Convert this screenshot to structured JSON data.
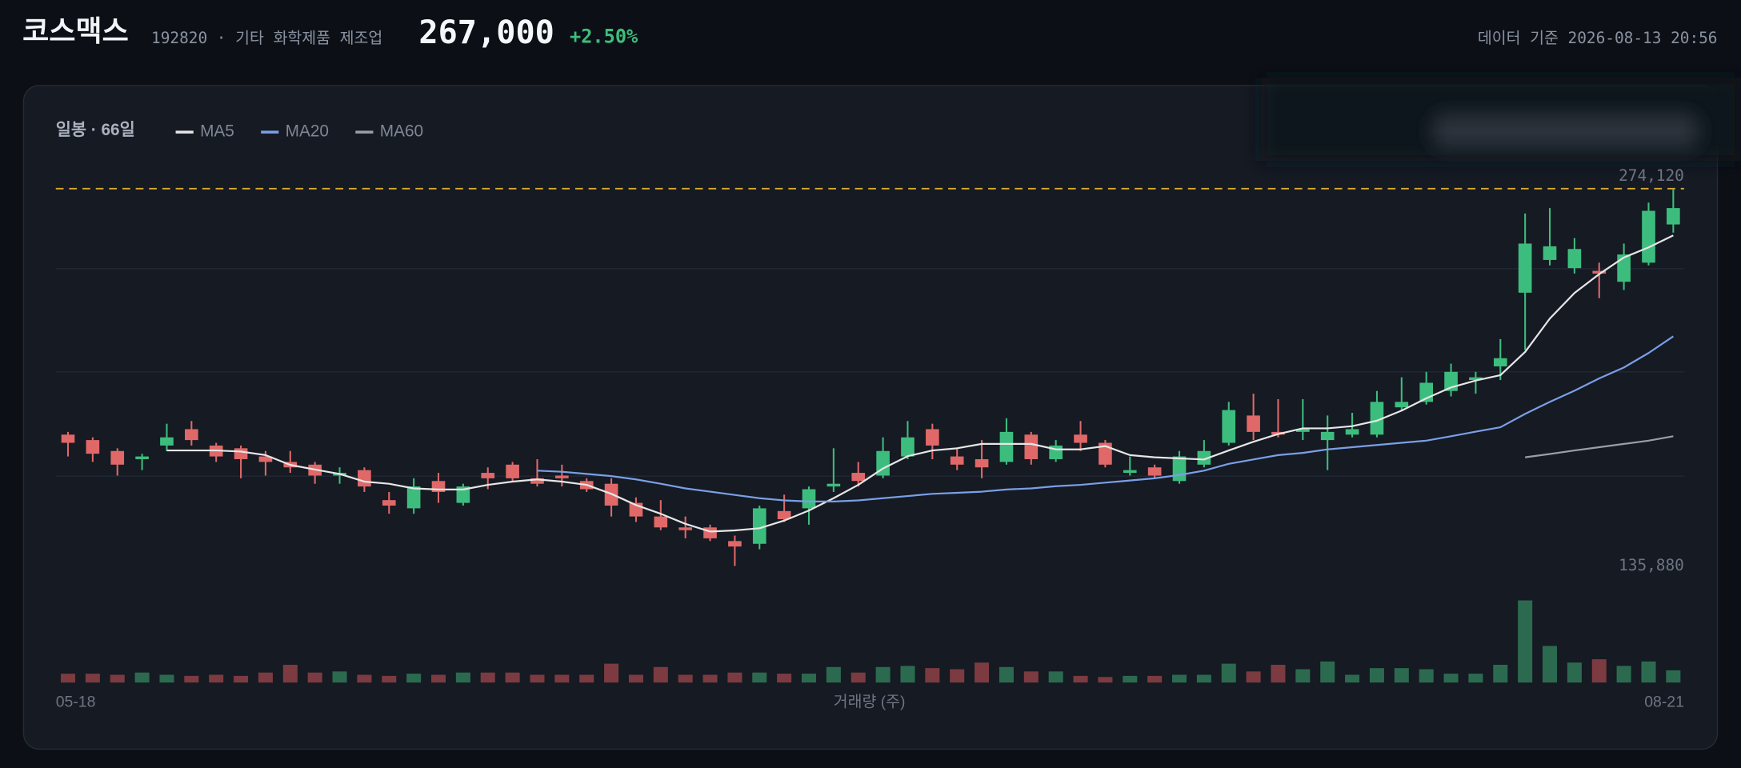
{
  "header": {
    "name": "코스맥스",
    "subtitle": "192820 · 기타 화학제품 제조업",
    "price": "267,000",
    "change": "+2.50%",
    "timestamp": "데이터 기준 2026-08-13 20:56"
  },
  "chart_data": {
    "type": "candlestick",
    "title": "일봉 · 66일",
    "categories": [
      "05-18",
      null,
      null,
      null,
      null,
      null,
      null,
      null,
      null,
      null,
      null,
      null,
      null,
      null,
      null,
      null,
      null,
      null,
      null,
      null,
      null,
      null,
      null,
      null,
      null,
      null,
      null,
      null,
      null,
      null,
      null,
      null,
      null,
      null,
      null,
      null,
      null,
      null,
      null,
      null,
      null,
      null,
      null,
      null,
      null,
      null,
      null,
      null,
      null,
      null,
      null,
      null,
      null,
      null,
      null,
      null,
      null,
      null,
      null,
      null,
      null,
      null,
      null,
      null,
      null,
      "08-21"
    ],
    "open": [
      184000,
      182000,
      178000,
      175000,
      180000,
      186000,
      180000,
      179000,
      176000,
      174000,
      173000,
      169000,
      171000,
      160000,
      157000,
      167000,
      159000,
      170000,
      173000,
      168000,
      169000,
      167000,
      166000,
      159000,
      154000,
      150000,
      150000,
      145000,
      144000,
      156000,
      157000,
      165000,
      170000,
      169000,
      176000,
      186000,
      176000,
      175000,
      174000,
      184000,
      175000,
      184000,
      181000,
      170000,
      172000,
      167000,
      173000,
      181000,
      191000,
      185000,
      185000,
      182000,
      184000,
      184000,
      194000,
      196000,
      200000,
      204000,
      209000,
      236000,
      248000,
      245000,
      244000,
      240000,
      247000,
      261000
    ],
    "high": [
      185000,
      183000,
      179000,
      177000,
      188000,
      189000,
      181000,
      180000,
      178000,
      178000,
      174000,
      172000,
      172000,
      163000,
      168000,
      170000,
      166000,
      172000,
      174000,
      175000,
      173000,
      168000,
      168000,
      161000,
      160000,
      154000,
      151000,
      147000,
      158000,
      162000,
      165000,
      179000,
      174000,
      183000,
      189000,
      188000,
      179000,
      182000,
      190000,
      185000,
      182000,
      189000,
      182000,
      176000,
      173000,
      178000,
      182000,
      196000,
      199000,
      197000,
      197000,
      191000,
      192000,
      200000,
      205000,
      207000,
      210000,
      207000,
      219000,
      265000,
      267000,
      256000,
      247000,
      254000,
      269000,
      274120
    ],
    "low": [
      176000,
      174000,
      169000,
      171000,
      178000,
      180000,
      174000,
      168000,
      169000,
      170000,
      166000,
      166000,
      163000,
      155000,
      155000,
      159000,
      158000,
      164000,
      167000,
      165000,
      165000,
      163000,
      154000,
      152000,
      149000,
      146000,
      145000,
      135880,
      142000,
      152000,
      151000,
      163000,
      165000,
      168000,
      175000,
      175000,
      171000,
      168000,
      173000,
      173000,
      174000,
      178000,
      172000,
      169000,
      168000,
      166000,
      172000,
      180000,
      182000,
      183000,
      182000,
      171000,
      183000,
      183000,
      193000,
      195000,
      198000,
      199000,
      204000,
      215000,
      246000,
      243000,
      234000,
      237000,
      246000,
      258000
    ],
    "close": [
      181000,
      177000,
      173000,
      176000,
      183000,
      182000,
      176000,
      175000,
      174000,
      172000,
      169000,
      170000,
      165000,
      158000,
      165000,
      163000,
      165000,
      168000,
      168000,
      166000,
      168000,
      164000,
      158000,
      154000,
      150000,
      149000,
      146000,
      143000,
      157000,
      153000,
      164000,
      166000,
      167000,
      178000,
      183000,
      180000,
      173000,
      172000,
      185000,
      175000,
      180000,
      181000,
      173000,
      171000,
      169000,
      176000,
      178000,
      193000,
      185000,
      184000,
      186000,
      185000,
      186000,
      196000,
      196000,
      203000,
      207000,
      205000,
      212000,
      254000,
      253000,
      252000,
      243000,
      250000,
      266000,
      267000
    ],
    "volume": [
      80000,
      80000,
      70000,
      90000,
      70000,
      60000,
      70000,
      60000,
      90000,
      160000,
      90000,
      100000,
      70000,
      60000,
      80000,
      70000,
      90000,
      90000,
      90000,
      70000,
      70000,
      70000,
      170000,
      70000,
      140000,
      70000,
      70000,
      90000,
      90000,
      80000,
      80000,
      140000,
      90000,
      140000,
      150000,
      130000,
      120000,
      180000,
      140000,
      100000,
      100000,
      60000,
      50000,
      60000,
      60000,
      70000,
      70000,
      170000,
      100000,
      160000,
      120000,
      190000,
      70000,
      130000,
      130000,
      120000,
      80000,
      80000,
      160000,
      740000,
      330000,
      180000,
      210000,
      150000,
      190000,
      110000
    ],
    "volume_label": "거래량 (주)",
    "up_color": "#3dbd7d",
    "down_color": "#e06868",
    "volume_up_color": "#2c6a4f",
    "volume_down_color": "#7c3b40",
    "ylim": [
      132000,
      282000
    ],
    "yticks": [
      168800,
      207000,
      244800
    ],
    "grid": true,
    "vlim": [
      0,
      800000
    ],
    "price_high": {
      "value": 274120,
      "label": "274,120"
    },
    "price_low": {
      "value": 135880,
      "label": "135,880"
    },
    "high_line_color": "#d9a92e",
    "series": [
      {
        "name": "MA5",
        "color": "#e6e6e6",
        "values": [
          null,
          null,
          null,
          null,
          178200,
          178200,
          178200,
          177800,
          176500,
          172900,
          171200,
          169600,
          166800,
          166000,
          164300,
          163900,
          163900,
          165600,
          166800,
          167600,
          166800,
          165600,
          162300,
          158200,
          155000,
          151300,
          148500,
          148900,
          149700,
          152500,
          156200,
          160700,
          165600,
          171600,
          176100,
          178200,
          179000,
          180600,
          180600,
          180600,
          178600,
          178600,
          179800,
          176500,
          175700,
          175300,
          174900,
          178200,
          181400,
          184200,
          186300,
          186300,
          187100,
          189100,
          192800,
          197300,
          201300,
          203800,
          205800,
          214300,
          226500,
          235900,
          242800,
          248900,
          252600,
          257000
        ]
      },
      {
        "name": "MA20",
        "color": "#7b9fe6",
        "values": [
          null,
          null,
          null,
          null,
          null,
          null,
          null,
          null,
          null,
          null,
          null,
          null,
          null,
          null,
          null,
          null,
          null,
          null,
          null,
          170800,
          170400,
          169600,
          168800,
          167600,
          166000,
          164300,
          163100,
          161900,
          160700,
          159900,
          159500,
          159500,
          159900,
          160700,
          161500,
          162300,
          162700,
          163100,
          163900,
          164300,
          165100,
          165600,
          166400,
          167200,
          168000,
          169200,
          170800,
          173300,
          174900,
          176500,
          177300,
          178600,
          179400,
          180200,
          181000,
          181800,
          183400,
          185100,
          186700,
          191600,
          196000,
          200100,
          204600,
          208600,
          213900,
          220000
        ]
      },
      {
        "name": "MA60",
        "color": "#9a9ea6",
        "values": [
          null,
          null,
          null,
          null,
          null,
          null,
          null,
          null,
          null,
          null,
          null,
          null,
          null,
          null,
          null,
          null,
          null,
          null,
          null,
          null,
          null,
          null,
          null,
          null,
          null,
          null,
          null,
          null,
          null,
          null,
          null,
          null,
          null,
          null,
          null,
          null,
          null,
          null,
          null,
          null,
          null,
          null,
          null,
          null,
          null,
          null,
          null,
          null,
          null,
          null,
          null,
          null,
          null,
          null,
          null,
          null,
          null,
          null,
          null,
          175700,
          176900,
          178200,
          179400,
          180600,
          181800,
          183400
        ]
      }
    ]
  }
}
